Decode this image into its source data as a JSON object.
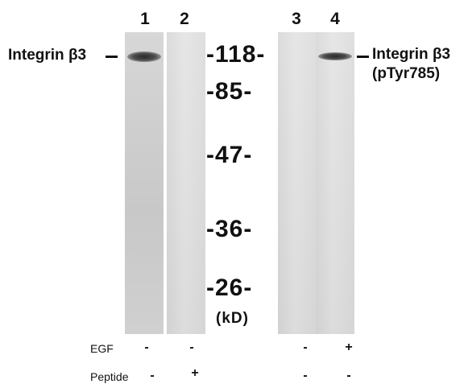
{
  "lanes": [
    {
      "number": "1"
    },
    {
      "number": "2"
    },
    {
      "number": "3"
    },
    {
      "number": "4"
    }
  ],
  "labels": {
    "left": "Integrin β3",
    "right_line1": "Integrin β3",
    "right_line2": "(pTyr785)"
  },
  "markers": [
    "-118-",
    "-85-",
    "-47-",
    "-36-",
    "-26-"
  ],
  "unit": "(kD)",
  "conditions": {
    "egf": {
      "label": "EGF",
      "values": [
        "-",
        "-",
        "-",
        "+"
      ]
    },
    "peptide": {
      "label": "Peptide",
      "values": [
        "-",
        "+",
        "-",
        "-"
      ]
    }
  }
}
